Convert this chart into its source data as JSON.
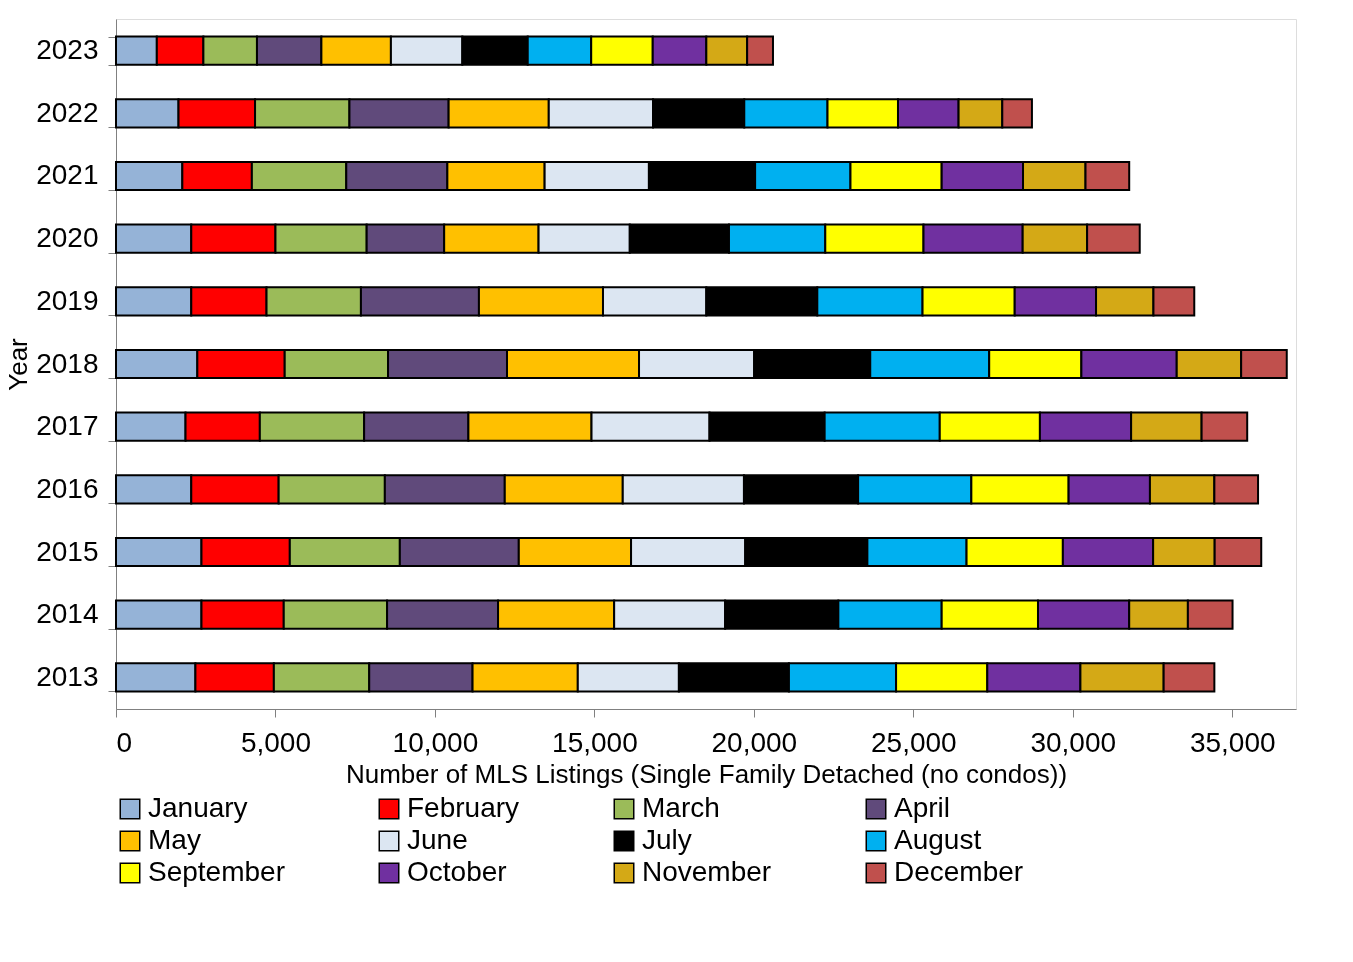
{
  "chart_data": {
    "type": "bar",
    "orientation": "horizontal",
    "stacked": true,
    "categories": [
      "2023",
      "2022",
      "2021",
      "2020",
      "2019",
      "2018",
      "2017",
      "2016",
      "2015",
      "2014",
      "2013"
    ],
    "xlabel": "Number of MLS Listings (Single Family Detached (no condos))",
    "ylabel": "Year",
    "xlim": [
      0,
      37000
    ],
    "xticks": [
      0,
      {
        "value": 5000,
        "label": "5,000"
      },
      {
        "value": 10000,
        "label": "10,000"
      },
      {
        "value": 15000,
        "label": "15,000"
      },
      {
        "value": 20000,
        "label": "20,000"
      },
      {
        "value": 25000,
        "label": "25,000"
      },
      {
        "value": 30000,
        "label": "30,000"
      },
      {
        "value": 35000,
        "label": "35,000"
      }
    ],
    "grid": false,
    "legend": "bottom",
    "series": [
      {
        "name": "January",
        "color": "#95b3d7",
        "values": [
          1280,
          1960,
          2080,
          2360,
          2360,
          2550,
          2180,
          2360,
          2680,
          2680,
          2490
        ]
      },
      {
        "name": "February",
        "color": "#ff0000",
        "values": [
          1460,
          2400,
          2180,
          2640,
          2360,
          2740,
          2330,
          2740,
          2770,
          2580,
          2460
        ]
      },
      {
        "name": "March",
        "color": "#9bbb59",
        "values": [
          1680,
          2960,
          2960,
          2860,
          2960,
          3240,
          3270,
          3330,
          3450,
          3240,
          2990
        ]
      },
      {
        "name": "April",
        "color": "#604a7b",
        "values": [
          2020,
          3110,
          3170,
          2430,
          3700,
          3730,
          3270,
          3760,
          3730,
          3480,
          3240
        ]
      },
      {
        "name": "May",
        "color": "#ffc000",
        "values": [
          2180,
          3140,
          3050,
          2960,
          3890,
          4140,
          3860,
          3700,
          3520,
          3640,
          3300
        ]
      },
      {
        "name": "June",
        "color": "#dce6f2",
        "values": [
          2240,
          3270,
          3270,
          2860,
          3240,
          3610,
          3700,
          3800,
          3580,
          3480,
          3170
        ]
      },
      {
        "name": "July",
        "color": "#000000",
        "values": [
          2050,
          2860,
          3330,
          3110,
          3480,
          3640,
          3610,
          3580,
          3830,
          3550,
          3450
        ]
      },
      {
        "name": "August",
        "color": "#00b0f0",
        "values": [
          1990,
          2610,
          2990,
          3020,
          3300,
          3730,
          3610,
          3550,
          3110,
          3240,
          3360
        ]
      },
      {
        "name": "September",
        "color": "#ffff00",
        "values": [
          1930,
          2210,
          2860,
          3080,
          2890,
          2890,
          3140,
          3050,
          3020,
          3020,
          2860
        ]
      },
      {
        "name": "October",
        "color": "#7030a0",
        "values": [
          1680,
          1900,
          2550,
          3110,
          2550,
          2990,
          2860,
          2550,
          2830,
          2860,
          2920
        ]
      },
      {
        "name": "November",
        "color": "#d4a916",
        "values": [
          1280,
          1370,
          1960,
          2020,
          1800,
          2020,
          2210,
          2020,
          1930,
          1840,
          2610
        ]
      },
      {
        "name": "December",
        "color": "#c0504d",
        "values": [
          810,
          930,
          1370,
          1650,
          1280,
          1430,
          1430,
          1370,
          1460,
          1400,
          1590
        ]
      }
    ]
  }
}
